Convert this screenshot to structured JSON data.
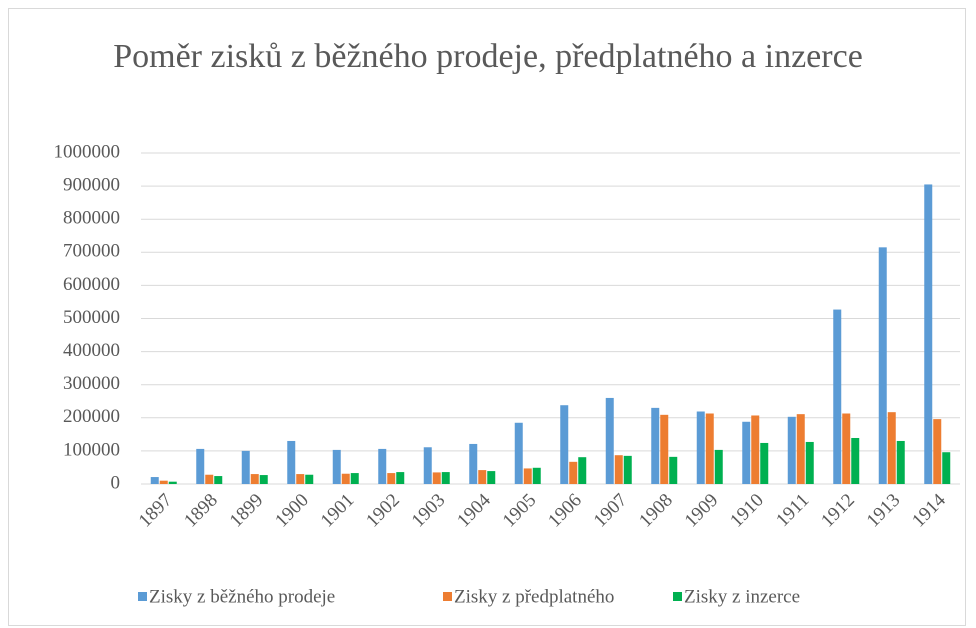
{
  "chart_data": {
    "type": "bar",
    "title": "Poměr zisků z běžného prodeje, předplatného a inzerce",
    "categories": [
      "1897",
      "1898",
      "1899",
      "1900",
      "1901",
      "1902",
      "1903",
      "1904",
      "1905",
      "1906",
      "1907",
      "1908",
      "1909",
      "1910",
      "1911",
      "1912",
      "1913",
      "1914"
    ],
    "series": [
      {
        "name": "Zisky z běžného prodeje",
        "color": "#5b9bd5",
        "values": [
          21000,
          106000,
          100000,
          130000,
          103000,
          106000,
          111000,
          121000,
          185000,
          238000,
          260000,
          230000,
          219000,
          188000,
          203000,
          527000,
          715000,
          905000
        ]
      },
      {
        "name": "Zisky z předplatného",
        "color": "#ed7d31",
        "values": [
          10000,
          28000,
          30000,
          30000,
          31000,
          33000,
          35000,
          42000,
          47000,
          67000,
          87000,
          209000,
          213000,
          207000,
          211000,
          213000,
          217000,
          196000
        ]
      },
      {
        "name": "Zisky z inzerce",
        "color": "#00b050",
        "values": [
          7000,
          24000,
          27000,
          28000,
          33000,
          36000,
          36000,
          39000,
          49000,
          81000,
          85000,
          82000,
          103000,
          124000,
          127000,
          139000,
          130000,
          96000
        ]
      }
    ],
    "ylim": [
      0,
      1000000
    ],
    "yticks": [
      0,
      100000,
      200000,
      300000,
      400000,
      500000,
      600000,
      700000,
      800000,
      900000,
      1000000
    ],
    "grid": true,
    "legend": "bottom"
  }
}
